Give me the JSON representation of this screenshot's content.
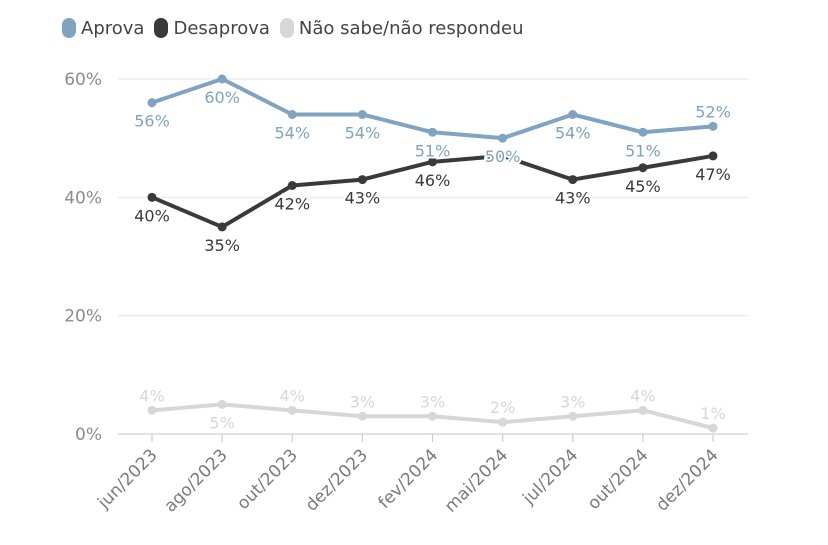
{
  "chart_data": {
    "type": "line",
    "title": "",
    "xlabel": "",
    "ylabel": "",
    "categories": [
      "jun/2023",
      "ago/2023",
      "out/2023",
      "dez/2023",
      "fev/2024",
      "mai/2024",
      "jul/2024",
      "out/2024",
      "dez/2024"
    ],
    "ylim": [
      0,
      60
    ],
    "yticks": [
      0,
      20,
      40,
      60
    ],
    "ytick_labels": [
      "0%",
      "20%",
      "40%",
      "60%"
    ],
    "grid": true,
    "legend_position": "top-left",
    "series": [
      {
        "name": "Aprova",
        "color": "#7fa3c0",
        "values": [
          56,
          60,
          54,
          54,
          51,
          50,
          54,
          51,
          52
        ],
        "labels": [
          "56%",
          "60%",
          "54%",
          "54%",
          "51%",
          "50%",
          "54%",
          "51%",
          "52%"
        ],
        "label_positions": [
          "below",
          "below",
          "below",
          "below",
          "below",
          "below",
          "below",
          "below",
          "above"
        ]
      },
      {
        "name": "Desaprova",
        "color": "#3a3a3a",
        "values": [
          40,
          35,
          42,
          43,
          46,
          47,
          43,
          45,
          47
        ],
        "labels": [
          "40%",
          "35%",
          "42%",
          "43%",
          "46%",
          "",
          "43%",
          "45%",
          "47%"
        ],
        "label_positions": [
          "below",
          "below",
          "below",
          "below",
          "below",
          "none",
          "below",
          "below",
          "below"
        ]
      },
      {
        "name": "Não sabe/não respondeu",
        "color": "#d7d7d7",
        "values": [
          4,
          5,
          4,
          3,
          3,
          2,
          3,
          4,
          1
        ],
        "labels": [
          "4%",
          "5%",
          "4%",
          "3%",
          "3%",
          "2%",
          "3%",
          "4%",
          "1%"
        ],
        "label_positions": [
          "above",
          "below",
          "above",
          "above",
          "above",
          "above",
          "above",
          "above",
          "above"
        ]
      }
    ]
  }
}
